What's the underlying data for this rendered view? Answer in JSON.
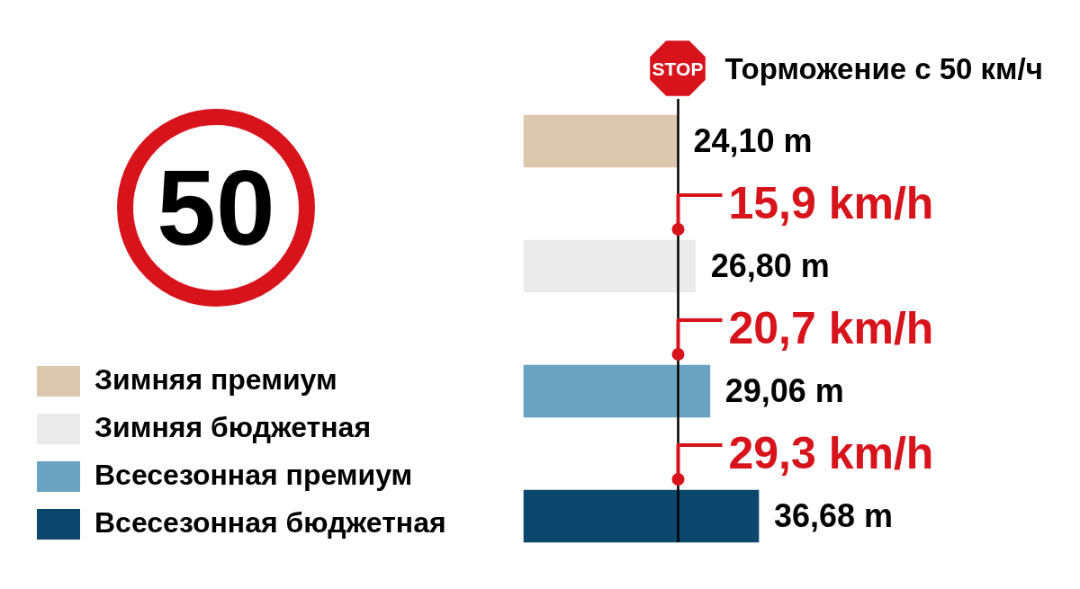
{
  "chart_data": {
    "type": "bar",
    "orientation": "horizontal",
    "stacked": true,
    "title": "Торможение с 50 км/ч",
    "categories": [
      null,
      null,
      null,
      null
    ],
    "series": [
      {
        "name": "Зимняя премиум",
        "color": "#dcc8ae",
        "values": [
          24.1,
          null,
          null,
          null
        ],
        "value_labels": [
          "24,10 m",
          null,
          null,
          null
        ]
      },
      {
        "name": "Зимняя бюджетная",
        "color": "#ebebeb",
        "values": [
          null,
          26.8,
          null,
          null
        ],
        "value_labels": [
          null,
          "26,80 m",
          null,
          null
        ]
      },
      {
        "name": "Всесезонная премиум",
        "color": "#6aa3c2",
        "values": [
          null,
          null,
          29.06,
          null
        ],
        "value_labels": [
          null,
          null,
          "29,06 m",
          null
        ]
      },
      {
        "name": "Всесезонная бюджетная",
        "color": "#0b476c",
        "values": [
          null,
          null,
          null,
          36.68
        ],
        "value_labels": [
          null,
          null,
          null,
          "36,68 m"
        ]
      }
    ],
    "ref_lines": [
      {
        "axis": "x",
        "value": 24.1,
        "color": "#000000"
      }
    ],
    "annotations": [
      "50",
      "STOP",
      "15,9 km/h",
      "20,7 km/h",
      "29,3 km/h"
    ],
    "legend": "bottom left",
    "tick_labels": false
  }
}
